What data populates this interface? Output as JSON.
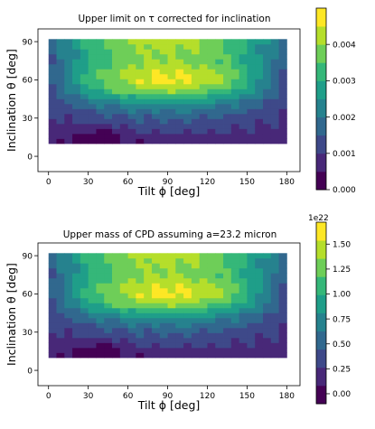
{
  "chart_data": [
    {
      "type": "heatmap",
      "title": "Upper limit on τ corrected for inclination",
      "xlabel": "Tilt ϕ [deg]",
      "ylabel": "Inclination θ [deg]",
      "xlim": [
        -8,
        190
      ],
      "ylim": [
        -12,
        100
      ],
      "x_range": [
        0,
        180
      ],
      "y_range": [
        10,
        92
      ],
      "xticks": [
        "0",
        "30",
        "60",
        "90",
        "120",
        "150",
        "180"
      ],
      "yticks": [
        "0",
        "30",
        "60",
        "90"
      ],
      "colorbar": {
        "vmin": 0.0,
        "vmax": 0.005,
        "levels": 10,
        "offset_label": "",
        "ticks": [
          "0.000",
          "0.001",
          "0.002",
          "0.003",
          "0.004"
        ],
        "tick_values": [
          0.0,
          0.001,
          0.002,
          0.003,
          0.004
        ]
      },
      "grid": false
    },
    {
      "type": "heatmap",
      "title": "Upper mass of CPD assuming a=23.2 micron",
      "xlabel": "Tilt ϕ [deg]",
      "ylabel": "Inclination θ [deg]",
      "xlim": [
        -8,
        190
      ],
      "ylim": [
        -12,
        100
      ],
      "x_range": [
        0,
        180
      ],
      "y_range": [
        10,
        92
      ],
      "xticks": [
        "0",
        "30",
        "60",
        "90",
        "120",
        "150",
        "180"
      ],
      "yticks": [
        "0",
        "30",
        "60",
        "90"
      ],
      "colorbar": {
        "vmin": -0.1,
        "vmax": 1.72,
        "levels": 10,
        "offset_label": "1e22",
        "ticks": [
          "0.00",
          "0.25",
          "0.50",
          "0.75",
          "1.00",
          "1.25",
          "1.50"
        ],
        "tick_values": [
          0.0,
          0.25,
          0.5,
          0.75,
          1.0,
          1.25,
          1.5
        ]
      },
      "grid": false
    }
  ],
  "colors": {
    "viridis_levels": [
      "#440154",
      "#482878",
      "#3e4989",
      "#31688e",
      "#26828e",
      "#1f9e89",
      "#35b779",
      "#6ece58",
      "#b5de2b",
      "#fde725"
    ]
  }
}
